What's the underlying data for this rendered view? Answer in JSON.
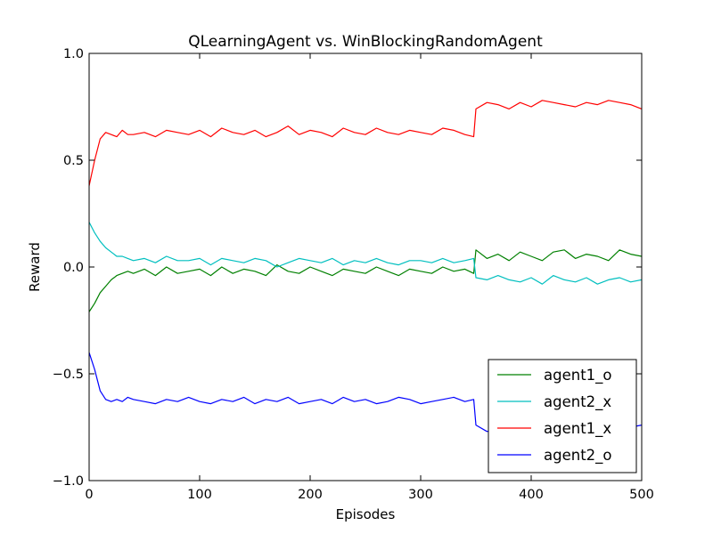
{
  "chart_data": {
    "type": "line",
    "title": "QLearningAgent vs. WinBlockingRandomAgent",
    "xlabel": "Episodes",
    "ylabel": "Reward",
    "xlim": [
      0,
      500
    ],
    "ylim": [
      -1.0,
      1.0
    ],
    "xticks": [
      0,
      100,
      200,
      300,
      400,
      500
    ],
    "xtick_labels": [
      "0",
      "100",
      "200",
      "300",
      "400",
      "500"
    ],
    "yticks": [
      -1.0,
      -0.5,
      0.0,
      0.5,
      1.0
    ],
    "ytick_labels": [
      "−1.0",
      "−0.5",
      "0.0",
      "0.5",
      "1.0"
    ],
    "grid": false,
    "legend_position": "lower-right",
    "series": [
      {
        "name": "agent1_o",
        "color": "#008000",
        "x": [
          0,
          5,
          10,
          15,
          20,
          25,
          30,
          35,
          40,
          50,
          60,
          70,
          80,
          90,
          100,
          110,
          120,
          130,
          140,
          150,
          160,
          170,
          180,
          190,
          200,
          210,
          220,
          230,
          240,
          250,
          260,
          270,
          280,
          290,
          300,
          310,
          320,
          330,
          340,
          348,
          350,
          360,
          370,
          380,
          390,
          400,
          410,
          420,
          430,
          440,
          450,
          460,
          470,
          480,
          490,
          500
        ],
        "y": [
          -0.21,
          -0.17,
          -0.12,
          -0.09,
          -0.06,
          -0.04,
          -0.03,
          -0.02,
          -0.03,
          -0.01,
          -0.04,
          0.0,
          -0.03,
          -0.02,
          -0.01,
          -0.04,
          0.0,
          -0.03,
          -0.01,
          -0.02,
          -0.04,
          0.01,
          -0.02,
          -0.03,
          0.0,
          -0.02,
          -0.04,
          -0.01,
          -0.02,
          -0.03,
          0.0,
          -0.02,
          -0.04,
          -0.01,
          -0.02,
          -0.03,
          0.0,
          -0.02,
          -0.01,
          -0.03,
          0.08,
          0.04,
          0.06,
          0.03,
          0.07,
          0.05,
          0.03,
          0.07,
          0.08,
          0.04,
          0.06,
          0.05,
          0.03,
          0.08,
          0.06,
          0.05
        ]
      },
      {
        "name": "agent2_x",
        "color": "#00bfbf",
        "x": [
          0,
          5,
          10,
          15,
          20,
          25,
          30,
          35,
          40,
          50,
          60,
          70,
          80,
          90,
          100,
          110,
          120,
          130,
          140,
          150,
          160,
          170,
          180,
          190,
          200,
          210,
          220,
          230,
          240,
          250,
          260,
          270,
          280,
          290,
          300,
          310,
          320,
          330,
          340,
          348,
          350,
          360,
          370,
          380,
          390,
          400,
          410,
          420,
          430,
          440,
          450,
          460,
          470,
          480,
          490,
          500
        ],
        "y": [
          0.21,
          0.16,
          0.12,
          0.09,
          0.07,
          0.05,
          0.05,
          0.04,
          0.03,
          0.04,
          0.02,
          0.05,
          0.03,
          0.03,
          0.04,
          0.01,
          0.04,
          0.03,
          0.02,
          0.04,
          0.03,
          0.0,
          0.02,
          0.04,
          0.03,
          0.02,
          0.04,
          0.01,
          0.03,
          0.02,
          0.04,
          0.02,
          0.01,
          0.03,
          0.03,
          0.02,
          0.04,
          0.02,
          0.03,
          0.04,
          -0.05,
          -0.06,
          -0.04,
          -0.06,
          -0.07,
          -0.05,
          -0.08,
          -0.04,
          -0.06,
          -0.07,
          -0.05,
          -0.08,
          -0.06,
          -0.05,
          -0.07,
          -0.06
        ]
      },
      {
        "name": "agent1_x",
        "color": "#ff0000",
        "x": [
          0,
          5,
          10,
          15,
          20,
          25,
          30,
          35,
          40,
          50,
          60,
          70,
          80,
          90,
          100,
          110,
          120,
          130,
          140,
          150,
          160,
          170,
          180,
          190,
          200,
          210,
          220,
          230,
          240,
          250,
          260,
          270,
          280,
          290,
          300,
          310,
          320,
          330,
          340,
          348,
          350,
          360,
          370,
          380,
          390,
          400,
          410,
          420,
          430,
          440,
          450,
          460,
          470,
          480,
          490,
          500
        ],
        "y": [
          0.38,
          0.5,
          0.6,
          0.63,
          0.62,
          0.61,
          0.64,
          0.62,
          0.62,
          0.63,
          0.61,
          0.64,
          0.63,
          0.62,
          0.64,
          0.61,
          0.65,
          0.63,
          0.62,
          0.64,
          0.61,
          0.63,
          0.66,
          0.62,
          0.64,
          0.63,
          0.61,
          0.65,
          0.63,
          0.62,
          0.65,
          0.63,
          0.62,
          0.64,
          0.63,
          0.62,
          0.65,
          0.64,
          0.62,
          0.61,
          0.74,
          0.77,
          0.76,
          0.74,
          0.77,
          0.75,
          0.78,
          0.77,
          0.76,
          0.75,
          0.77,
          0.76,
          0.78,
          0.77,
          0.76,
          0.74
        ]
      },
      {
        "name": "agent2_o",
        "color": "#0000ff",
        "x": [
          0,
          5,
          10,
          15,
          20,
          25,
          30,
          35,
          40,
          50,
          60,
          70,
          80,
          90,
          100,
          110,
          120,
          130,
          140,
          150,
          160,
          170,
          180,
          190,
          200,
          210,
          220,
          230,
          240,
          250,
          260,
          270,
          280,
          290,
          300,
          310,
          320,
          330,
          340,
          348,
          350,
          360,
          370,
          380,
          390,
          400,
          410,
          420,
          430,
          440,
          450,
          460,
          470,
          480,
          490,
          500
        ],
        "y": [
          -0.4,
          -0.48,
          -0.58,
          -0.62,
          -0.63,
          -0.62,
          -0.63,
          -0.61,
          -0.62,
          -0.63,
          -0.64,
          -0.62,
          -0.63,
          -0.61,
          -0.63,
          -0.64,
          -0.62,
          -0.63,
          -0.61,
          -0.64,
          -0.62,
          -0.63,
          -0.61,
          -0.64,
          -0.63,
          -0.62,
          -0.64,
          -0.61,
          -0.63,
          -0.62,
          -0.64,
          -0.63,
          -0.61,
          -0.62,
          -0.64,
          -0.63,
          -0.62,
          -0.61,
          -0.63,
          -0.62,
          -0.74,
          -0.77,
          -0.76,
          -0.75,
          -0.77,
          -0.76,
          -0.78,
          -0.75,
          -0.77,
          -0.76,
          -0.75,
          -0.78,
          -0.76,
          -0.77,
          -0.75,
          -0.74
        ]
      }
    ]
  }
}
